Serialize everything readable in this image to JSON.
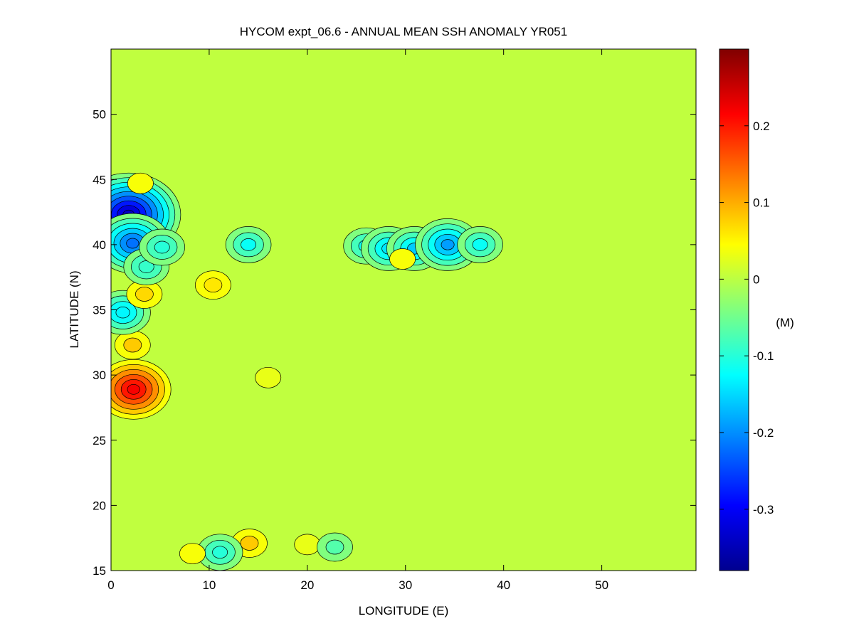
{
  "chart_data": {
    "type": "heatmap",
    "subtype": "filled-contour",
    "title": "HYCOM expt_06.6 - ANNUAL MEAN SSH ANOMALY YR051",
    "xlabel": "LONGITUDE (E)",
    "ylabel": "LATITUDE (N)",
    "xlim": [
      0,
      59.6
    ],
    "ylim": [
      15,
      55
    ],
    "xticks": [
      0,
      10,
      20,
      30,
      40,
      50
    ],
    "yticks": [
      15,
      20,
      25,
      30,
      35,
      40,
      45,
      50
    ],
    "background_value": 0,
    "colorbar": {
      "label": "(M)",
      "range": [
        -0.38,
        0.3
      ],
      "ticks": [
        0.2,
        0.1,
        0,
        -0.1,
        -0.2,
        -0.3
      ],
      "tick_labels": [
        "0.2",
        "0.1",
        "0",
        "-0.1",
        "-0.2",
        "-0.3"
      ],
      "colormap": "jet"
    },
    "features": [
      {
        "lon": 1.8,
        "lat": 42.3,
        "value": -0.34
      },
      {
        "lon": 2.2,
        "lat": 40.1,
        "value": -0.22
      },
      {
        "lon": 2.3,
        "lat": 28.9,
        "value": 0.22
      },
      {
        "lon": 2.2,
        "lat": 32.3,
        "value": 0.08
      },
      {
        "lon": 1.2,
        "lat": 34.8,
        "value": -0.13
      },
      {
        "lon": 3.4,
        "lat": 36.2,
        "value": 0.07
      },
      {
        "lon": 3.6,
        "lat": 38.3,
        "value": -0.09
      },
      {
        "lon": 5.2,
        "lat": 39.8,
        "value": -0.1
      },
      {
        "lon": 10.4,
        "lat": 36.9,
        "value": 0.06
      },
      {
        "lon": 14.0,
        "lat": 40.0,
        "value": -0.12
      },
      {
        "lon": 26.0,
        "lat": 39.9,
        "value": -0.12
      },
      {
        "lon": 28.3,
        "lat": 39.7,
        "value": -0.14
      },
      {
        "lon": 30.9,
        "lat": 39.7,
        "value": -0.16
      },
      {
        "lon": 34.3,
        "lat": 40.0,
        "value": -0.19
      },
      {
        "lon": 37.6,
        "lat": 40.0,
        "value": -0.12
      },
      {
        "lon": 29.7,
        "lat": 38.9,
        "value": 0.04
      },
      {
        "lon": 14.1,
        "lat": 17.1,
        "value": 0.08
      },
      {
        "lon": 11.1,
        "lat": 16.4,
        "value": -0.1
      },
      {
        "lon": 16.0,
        "lat": 29.8,
        "value": 0.03
      },
      {
        "lon": 3.0,
        "lat": 44.7,
        "value": 0.04
      },
      {
        "lon": 8.3,
        "lat": 16.3,
        "value": 0.04
      },
      {
        "lon": 20.0,
        "lat": 17.0,
        "value": 0.03
      },
      {
        "lon": 22.8,
        "lat": 16.8,
        "value": -0.07
      }
    ]
  }
}
